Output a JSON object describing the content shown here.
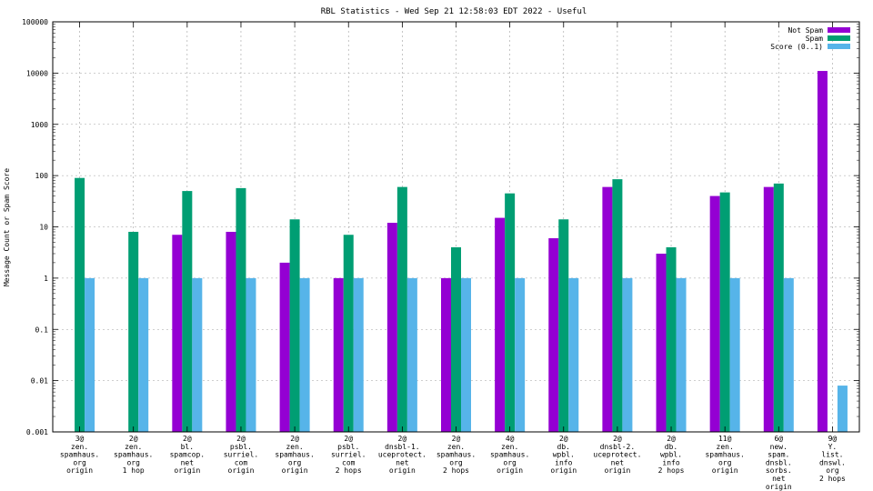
{
  "chart_data": {
    "type": "bar",
    "title": "RBL Statistics - Wed Sep 21 12:58:03 EDT 2022 - Useful",
    "ylabel": "Message Count or Spam Score",
    "xlabel": "",
    "yscale": "log",
    "ylim": [
      0.001,
      100000
    ],
    "ytick_labels": [
      "0.001",
      "0.01",
      "0.1",
      "1",
      "10",
      "100",
      "1000",
      "10000",
      "100000"
    ],
    "ytick_values": [
      0.001,
      0.01,
      0.1,
      1,
      10,
      100,
      1000,
      10000,
      100000
    ],
    "grid": true,
    "legend_position": "top-right",
    "categories": [
      [
        "3@",
        "zen.",
        "spamhaus.",
        "org",
        "origin"
      ],
      [
        "2@",
        "zen.",
        "spamhaus.",
        "org",
        "1 hop"
      ],
      [
        "2@",
        "bl.",
        "spamcop.",
        "net",
        "origin"
      ],
      [
        "2@",
        "psbl.",
        "surriel.",
        "com",
        "origin"
      ],
      [
        "2@",
        "zen.",
        "spamhaus.",
        "org",
        "origin"
      ],
      [
        "2@",
        "psbl.",
        "surriel.",
        "com",
        "2 hops"
      ],
      [
        "2@",
        "dnsbl-1.",
        "uceprotect.",
        "net",
        "origin"
      ],
      [
        "2@",
        "zen.",
        "spamhaus.",
        "org",
        "2 hops"
      ],
      [
        "4@",
        "zen.",
        "spamhaus.",
        "org",
        "origin"
      ],
      [
        "2@",
        "db.",
        "wpbl.",
        "info",
        "origin"
      ],
      [
        "2@",
        "dnsbl-2.",
        "uceprotect.",
        "net",
        "origin"
      ],
      [
        "2@",
        "db.",
        "wpbl.",
        "info",
        "2 hops"
      ],
      [
        "11@",
        "zen.",
        "spamhaus.",
        "org",
        "origin"
      ],
      [
        "6@",
        "new.",
        "spam.",
        "dnsbl.",
        "sorbs.",
        "net",
        "origin"
      ],
      [
        "9@",
        "Y.",
        "list.",
        "dnswl.",
        "org",
        "2 hops"
      ]
    ],
    "series": [
      {
        "name": "Not Spam",
        "color": "#9400d3",
        "values": [
          null,
          null,
          7,
          8,
          2,
          1,
          12,
          1,
          15,
          6,
          60,
          3,
          40,
          60,
          11000
        ]
      },
      {
        "name": "Spam",
        "color": "#009e73",
        "values": [
          90,
          8,
          50,
          57,
          14,
          7,
          60,
          4,
          45,
          14,
          85,
          4,
          47,
          70,
          null
        ]
      },
      {
        "name": "Score (0..1)",
        "color": "#56b4e9",
        "values": [
          1,
          1,
          1,
          1,
          1,
          1,
          1,
          1,
          1,
          1,
          1,
          1,
          1,
          1,
          0.008
        ]
      }
    ]
  }
}
